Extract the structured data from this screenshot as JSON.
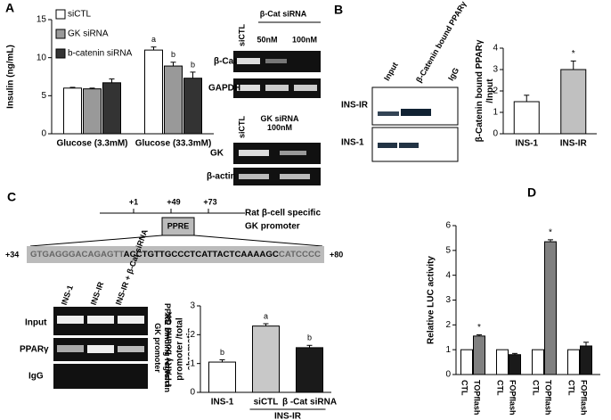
{
  "panel_labels": [
    "A",
    "B",
    "C",
    "D"
  ],
  "chart_data": [
    {
      "type": "bar",
      "ylabel": "Insulin (ng/mL)",
      "categories": [
        "Glucose (3.3mM)",
        "Glucose (33.3mM)"
      ],
      "series": [
        {
          "name": "siCTL",
          "color": "#ffffff",
          "values": [
            6.0,
            11.0
          ],
          "errors": [
            0.1,
            0.4
          ],
          "annotations": [
            null,
            "a"
          ]
        },
        {
          "name": "GK siRNA",
          "color": "#999999",
          "values": [
            5.9,
            8.9
          ],
          "errors": [
            0.1,
            0.5
          ],
          "annotations": [
            null,
            "b"
          ]
        },
        {
          "name": "b-catenin siRNA",
          "color": "#333333",
          "values": [
            6.7,
            7.3
          ],
          "errors": [
            0.5,
            0.8
          ],
          "annotations": [
            null,
            "b"
          ]
        }
      ],
      "ylim": [
        0,
        15
      ],
      "yticks": [
        0,
        5,
        10,
        15
      ],
      "legend": "upper left"
    },
    {
      "type": "bar",
      "ylabel": "β-Catenin bound PPARγ /Input",
      "categories": [
        "INS-1",
        "INS-IR"
      ],
      "values": [
        1.5,
        3.0
      ],
      "errors": [
        0.3,
        0.4
      ],
      "colors": [
        "#ffffff",
        "#c0c0c0"
      ],
      "annotations": [
        null,
        "*"
      ],
      "ylim": [
        0,
        4
      ],
      "yticks": [
        0,
        1,
        2,
        3,
        4
      ]
    },
    {
      "type": "bar",
      "ylabel": "PPARγ bound GK promoter /total chromatin",
      "categories": [
        "INS-1",
        "siCTL",
        "β -Cat siRNA"
      ],
      "values": [
        1.05,
        2.3,
        1.55
      ],
      "errors": [
        0.08,
        0.08,
        0.08
      ],
      "colors": [
        "#ffffff",
        "#c8c8c8",
        "#1a1a1a"
      ],
      "annotations": [
        "b",
        "a",
        "b"
      ],
      "group_label": "INS-IR",
      "ylim": [
        0,
        3
      ],
      "yticks": [
        0,
        1,
        2,
        3
      ]
    },
    {
      "type": "bar",
      "ylabel": "Relative LUC activity",
      "categories": [
        "CTL",
        "TOPflash",
        "CTL",
        "FOPflash",
        "CTL",
        "TOPflash",
        "CTL",
        "FOPflash"
      ],
      "values": [
        1,
        1.55,
        1,
        0.8,
        1,
        5.35,
        1,
        1.15
      ],
      "errors": [
        0,
        0.05,
        0,
        0.05,
        0,
        0.08,
        0,
        0.15
      ],
      "colors": [
        "#ffffff",
        "#808080",
        "#ffffff",
        "#1a1a1a",
        "#ffffff",
        "#808080",
        "#ffffff",
        "#1a1a1a"
      ],
      "annotations": [
        null,
        "*",
        null,
        null,
        null,
        "*",
        null,
        null
      ],
      "ylim": [
        0,
        6
      ],
      "yticks": [
        0,
        1,
        2,
        3,
        4,
        5,
        6
      ]
    }
  ],
  "gels": {
    "a_top": {
      "header": "β-Cat siRNA",
      "lanes": [
        "siCTL",
        "50nM",
        "100nM"
      ],
      "rows": [
        "β-Cat",
        "GAPDH"
      ]
    },
    "a_bottom": {
      "lanes": [
        "siCTL",
        "GK siRNA 100nM"
      ],
      "rows": [
        "GK",
        "β-actin"
      ]
    },
    "b": {
      "lanes": [
        "Input",
        "β-Catenin bound PPARγ",
        "IgG"
      ],
      "rows": [
        "INS-IR",
        "INS-1"
      ]
    },
    "c": {
      "lanes": [
        "INS-1",
        "INS-IR",
        "INS-IR + β-Cat siRNA"
      ],
      "rows": [
        "Input",
        "PPARγ",
        "IgG"
      ],
      "side_label": "PPRE binding region in GK promoter"
    }
  },
  "diagram": {
    "positions": [
      "+1",
      "+49",
      "+73"
    ],
    "box": "PPRE",
    "title_1": "Rat β-cell specific",
    "title_2": "GK promoter",
    "start": "+34",
    "end": "+80",
    "sequence": [
      "GTGAGGGACAGAGTT",
      "ACCTGTTGCCCTCATTACTCAAAAGC",
      "CATCCCC"
    ]
  }
}
